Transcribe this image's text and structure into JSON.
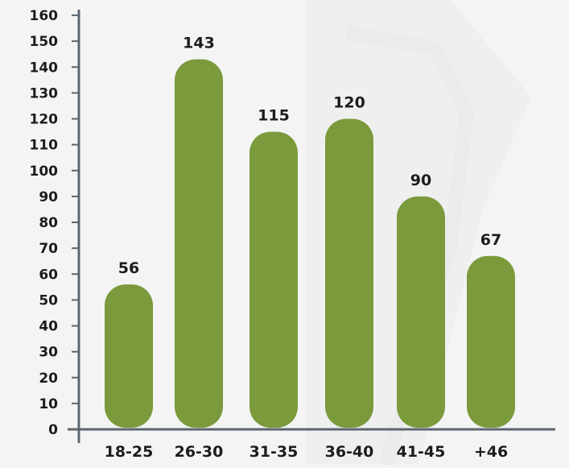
{
  "chart_data": {
    "type": "bar",
    "categories": [
      "18-25",
      "26-30",
      "31-35",
      "36-40",
      "41-45",
      "+46"
    ],
    "values": [
      56,
      143,
      115,
      120,
      90,
      67
    ],
    "ylim": [
      0,
      160
    ],
    "yticks": [
      0,
      10,
      20,
      30,
      40,
      50,
      60,
      70,
      80,
      90,
      100,
      110,
      120,
      130,
      140,
      150,
      160
    ],
    "grid": false,
    "legend": "none",
    "bar_color": "#7a9a3c",
    "axis_color": "#5c6670",
    "label_color": "#1c1c1c",
    "background_color": "#f4f4f4"
  }
}
